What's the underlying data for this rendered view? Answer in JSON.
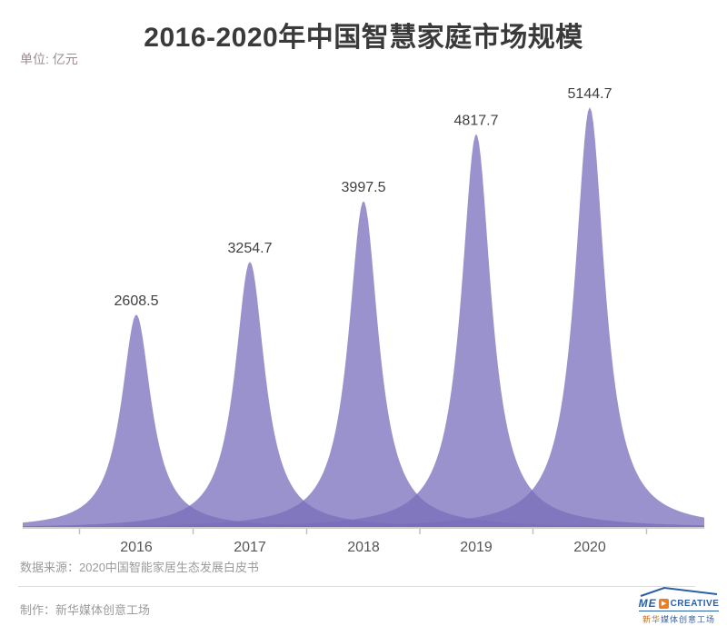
{
  "header": {
    "title": "2016-2020年中国智慧家庭市场规模",
    "unit_label": "单位: 亿元"
  },
  "chart_data": {
    "type": "area",
    "variant": "overlapping-sharp-peaks",
    "title": "2016-2020年中国智慧家庭市场规模",
    "categories": [
      "2016",
      "2017",
      "2018",
      "2019",
      "2020"
    ],
    "values": [
      2608.5,
      3254.7,
      3997.5,
      4817.7,
      5144.7
    ],
    "xlabel": "",
    "ylabel": "亿元",
    "ylim": [
      0,
      5500
    ],
    "grid": false,
    "legend": "none",
    "fill_color": "rgba(120,110,187,0.75)",
    "axis_color": "#cdcdcd",
    "tick_color": "#c0c0c0",
    "value_label_color": "#3f3f3f",
    "category_label_color": "#555555"
  },
  "footer": {
    "source": "数据来源：2020中国智能家居生态发展白皮书",
    "credit": "制作：新华媒体创意工场"
  },
  "logo": {
    "brand_me": "ME",
    "brand_create": "CREATIVE",
    "play_glyph": "▶",
    "subtext_left": "新华",
    "subtext_right": "媒体创意工场",
    "blue": "#2b5ea7",
    "orange": "#ee7d1e"
  }
}
